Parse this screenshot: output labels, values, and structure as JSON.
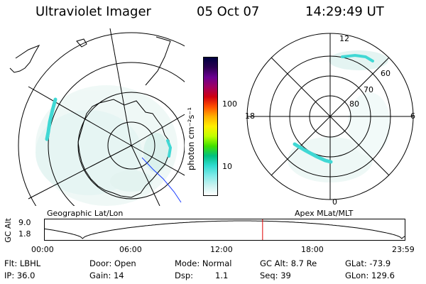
{
  "header": {
    "instrument": "Ultraviolet Imager",
    "date": "05 Oct 07",
    "time": "14:29:49 UT"
  },
  "left_panel": {
    "caption": "Geographic Lat/Lon"
  },
  "right_panel": {
    "caption": "Apex MLat/MLT",
    "mlt_labels": {
      "top": "12",
      "left": "18",
      "right": "6",
      "bottom": "0"
    },
    "lat_labels": [
      "60",
      "70",
      "80"
    ]
  },
  "colorbar": {
    "unit_label": "photon cm⁻²s⁻¹",
    "ticks": [
      "100",
      "10"
    ],
    "colors": [
      "#000040",
      "#2a0050",
      "#6a0090",
      "#a00060",
      "#d00010",
      "#ff5000",
      "#ffb000",
      "#ffee00",
      "#c0ff00",
      "#40e000",
      "#00c080",
      "#30dcd0",
      "#80eae8",
      "#c8f2f0",
      "#ffffff"
    ]
  },
  "timeline": {
    "axis_label": "GC Alt",
    "y_ticks": [
      "9.0",
      "1.8"
    ],
    "x_ticks": [
      "00:00",
      "06:00",
      "12:00",
      "18:00",
      "23:59"
    ],
    "current_time_fraction": 0.604,
    "marker_color": "#e00000"
  },
  "status": {
    "row1": {
      "filter": "Flt: LBHL",
      "door": "Door: Open",
      "mode": "Mode: Normal",
      "gc_alt": "GC Alt: 8.7 Re",
      "glat": "GLat: -73.9"
    },
    "row2": {
      "ip": "IP: 36.0",
      "gain": "Gain: 14",
      "dsp_label": "Dsp:",
      "dsp_value": "1.1",
      "seq": "Seq: 39",
      "glon": "GLon: 129.6"
    }
  },
  "colors": {
    "aurora": "#40d8d4",
    "aurora_faint": "#bfe8e4",
    "trace_blue": "#1a3cff",
    "grid": "#000000"
  }
}
